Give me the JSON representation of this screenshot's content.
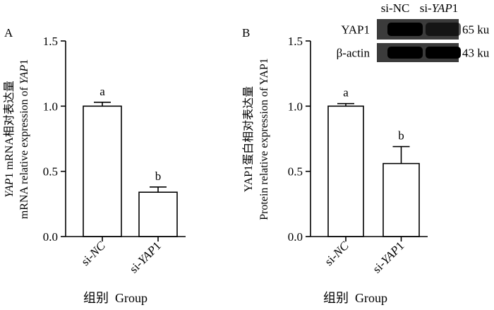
{
  "chart_data": [
    {
      "type": "bar",
      "panel": "A",
      "categories": [
        {
          "pre": "si-",
          "italic": "NC",
          "post": ""
        },
        {
          "pre": "si-",
          "italic": "YAP",
          "post": "1"
        }
      ],
      "values": [
        1.0,
        0.34
      ],
      "errors": [
        0.03,
        0.04
      ],
      "significance": [
        "a",
        "b"
      ],
      "ylim": [
        0,
        1.5
      ],
      "yticks": [
        "0.0",
        "0.5",
        "1.0",
        "1.5"
      ],
      "ylabel_line1": {
        "italic": "YAP",
        "rest": "1 mRNA相对表达量"
      },
      "ylabel_line2": {
        "pre": "mRNA relative expression of ",
        "italic": "YAP",
        "post": "1"
      },
      "xlabel": "组别  Group"
    },
    {
      "type": "bar",
      "panel": "B",
      "categories": [
        {
          "pre": "si-",
          "italic": "NC",
          "post": ""
        },
        {
          "pre": "si-",
          "italic": "YAP",
          "post": "1"
        }
      ],
      "values": [
        1.0,
        0.56
      ],
      "errors": [
        0.02,
        0.13
      ],
      "significance": [
        "a",
        "b"
      ],
      "ylim": [
        0,
        1.5
      ],
      "yticks": [
        "0.0",
        "0.5",
        "1.0",
        "1.5"
      ],
      "ylabel_line1": {
        "italic": "",
        "rest": "YAP1蛋白相对表达量"
      },
      "ylabel_line2": {
        "pre": "Protein relative expression of YAP1",
        "italic": "",
        "post": ""
      },
      "xlabel": "组别  Group",
      "blot": {
        "lanes": [
          {
            "pre": "si-NC",
            "italic": "",
            "post": ""
          },
          {
            "pre": "si-",
            "italic": "YAP",
            "post": "1"
          }
        ],
        "rows": [
          {
            "protein": "YAP1",
            "size": "65 ku"
          },
          {
            "protein": "β-actin",
            "size": "43 ku"
          }
        ]
      }
    }
  ]
}
